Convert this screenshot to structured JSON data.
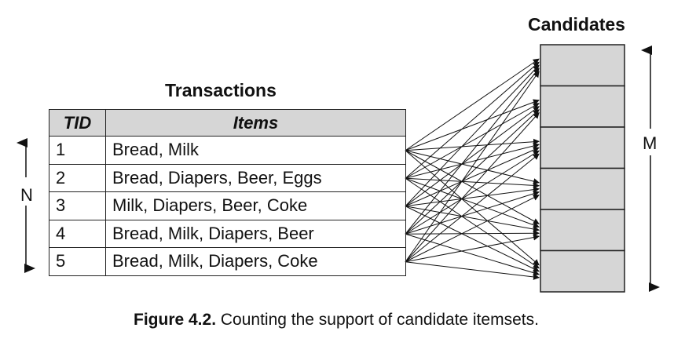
{
  "transactions_title": "Transactions",
  "candidates_title": "Candidates",
  "table": {
    "headers": {
      "tid": "TID",
      "items": "Items"
    },
    "rows": [
      {
        "tid": "1",
        "items": "Bread, Milk"
      },
      {
        "tid": "2",
        "items": "Bread, Diapers, Beer, Eggs"
      },
      {
        "tid": "3",
        "items": "Milk, Diapers, Beer, Coke"
      },
      {
        "tid": "4",
        "items": "Bread, Milk, Diapers, Beer"
      },
      {
        "tid": "5",
        "items": "Bread, Milk, Diapers, Coke"
      }
    ]
  },
  "candidate_count": 6,
  "n_label": "N",
  "m_label": "M",
  "caption": {
    "label": "Figure 4.2.",
    "text": "Counting the support of candidate itemsets."
  }
}
